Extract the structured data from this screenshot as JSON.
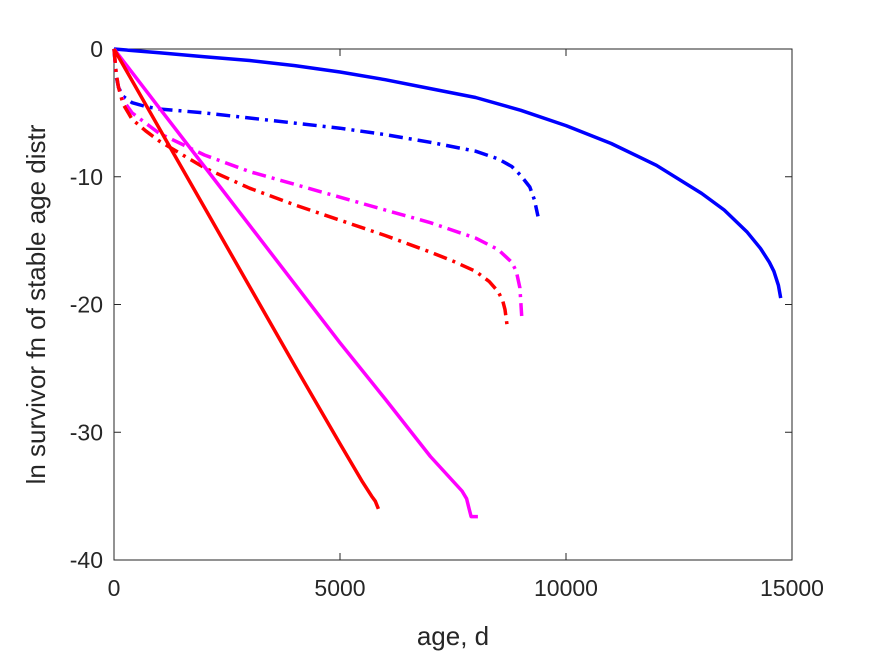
{
  "chart_data": {
    "type": "line",
    "xlabel": "age, d",
    "ylabel": "ln survivor fn of stable age distr",
    "xlim": [
      0,
      15000
    ],
    "ylim": [
      -40,
      0
    ],
    "xticks": [
      0,
      5000,
      10000,
      15000
    ],
    "yticks": [
      0,
      -10,
      -20,
      -30,
      -40
    ],
    "xtick_labels": [
      "0",
      "5000",
      "10000",
      "15000"
    ],
    "ytick_labels": [
      "0",
      "-10",
      "-20",
      "-30",
      "-40"
    ],
    "grid": false,
    "series": [
      {
        "color": "#0000ff",
        "style": "solid",
        "x": [
          0,
          1000,
          2000,
          3000,
          4000,
          5000,
          6000,
          7000,
          8000,
          9000,
          10000,
          11000,
          12000,
          13000,
          13500,
          14000,
          14300,
          14500,
          14600,
          14700,
          14750
        ],
        "y": [
          0,
          -0.3,
          -0.6,
          -0.9,
          -1.3,
          -1.8,
          -2.4,
          -3.1,
          -3.8,
          -4.8,
          -6.0,
          -7.4,
          -9.1,
          -11.3,
          -12.6,
          -14.3,
          -15.6,
          -16.7,
          -17.4,
          -18.5,
          -19.5
        ]
      },
      {
        "color": "#0000ff",
        "style": "dashdot",
        "x": [
          0,
          50,
          100,
          200,
          400,
          700,
          1000,
          2000,
          3000,
          4000,
          5000,
          6000,
          7000,
          8000,
          8500,
          8800,
          9000,
          9200,
          9300,
          9380
        ],
        "y": [
          0,
          -2.2,
          -3.0,
          -3.7,
          -4.2,
          -4.5,
          -4.7,
          -5.0,
          -5.4,
          -5.8,
          -6.2,
          -6.7,
          -7.3,
          -8.0,
          -8.6,
          -9.2,
          -9.9,
          -10.8,
          -11.8,
          -13.1
        ]
      },
      {
        "color": "#ff00ff",
        "style": "dashdot",
        "x": [
          0,
          50,
          100,
          200,
          400,
          700,
          1000,
          2000,
          3000,
          4000,
          5000,
          6000,
          7000,
          8000,
          8500,
          8800,
          8900,
          8980,
          9020
        ],
        "y": [
          0,
          -2.0,
          -3.0,
          -4.0,
          -5.0,
          -5.8,
          -6.6,
          -8.3,
          -9.6,
          -10.6,
          -11.6,
          -12.6,
          -13.6,
          -14.8,
          -15.7,
          -16.7,
          -17.4,
          -18.7,
          -20.9
        ]
      },
      {
        "color": "#ff0000",
        "style": "dashdot",
        "x": [
          0,
          50,
          100,
          200,
          400,
          700,
          1000,
          2000,
          3000,
          4000,
          5000,
          6000,
          7000,
          7500,
          8000,
          8300,
          8500,
          8600,
          8650,
          8700
        ],
        "y": [
          0,
          -2.0,
          -3.0,
          -4.3,
          -5.5,
          -6.4,
          -7.2,
          -9.3,
          -10.9,
          -12.2,
          -13.4,
          -14.6,
          -15.9,
          -16.6,
          -17.4,
          -18.2,
          -19.0,
          -19.7,
          -20.4,
          -21.7
        ]
      },
      {
        "color": "#ff00ff",
        "style": "solid",
        "x": [
          0,
          1000,
          2000,
          3000,
          4000,
          5000,
          6000,
          7000,
          7700,
          7800,
          7850,
          7900,
          8000,
          8050
        ],
        "y": [
          0,
          -4.6,
          -9.2,
          -13.8,
          -18.4,
          -23.0,
          -27.4,
          -31.9,
          -34.6,
          -35.2,
          -35.9,
          -36.6,
          -36.6,
          -36.6
        ]
      },
      {
        "color": "#ff0000",
        "style": "solid",
        "x": [
          0,
          1000,
          2000,
          3000,
          4000,
          5000,
          5500,
          5700,
          5780,
          5850
        ],
        "y": [
          0,
          -6.2,
          -12.4,
          -18.6,
          -24.8,
          -30.9,
          -33.9,
          -35.0,
          -35.4,
          -36.0
        ]
      }
    ]
  }
}
